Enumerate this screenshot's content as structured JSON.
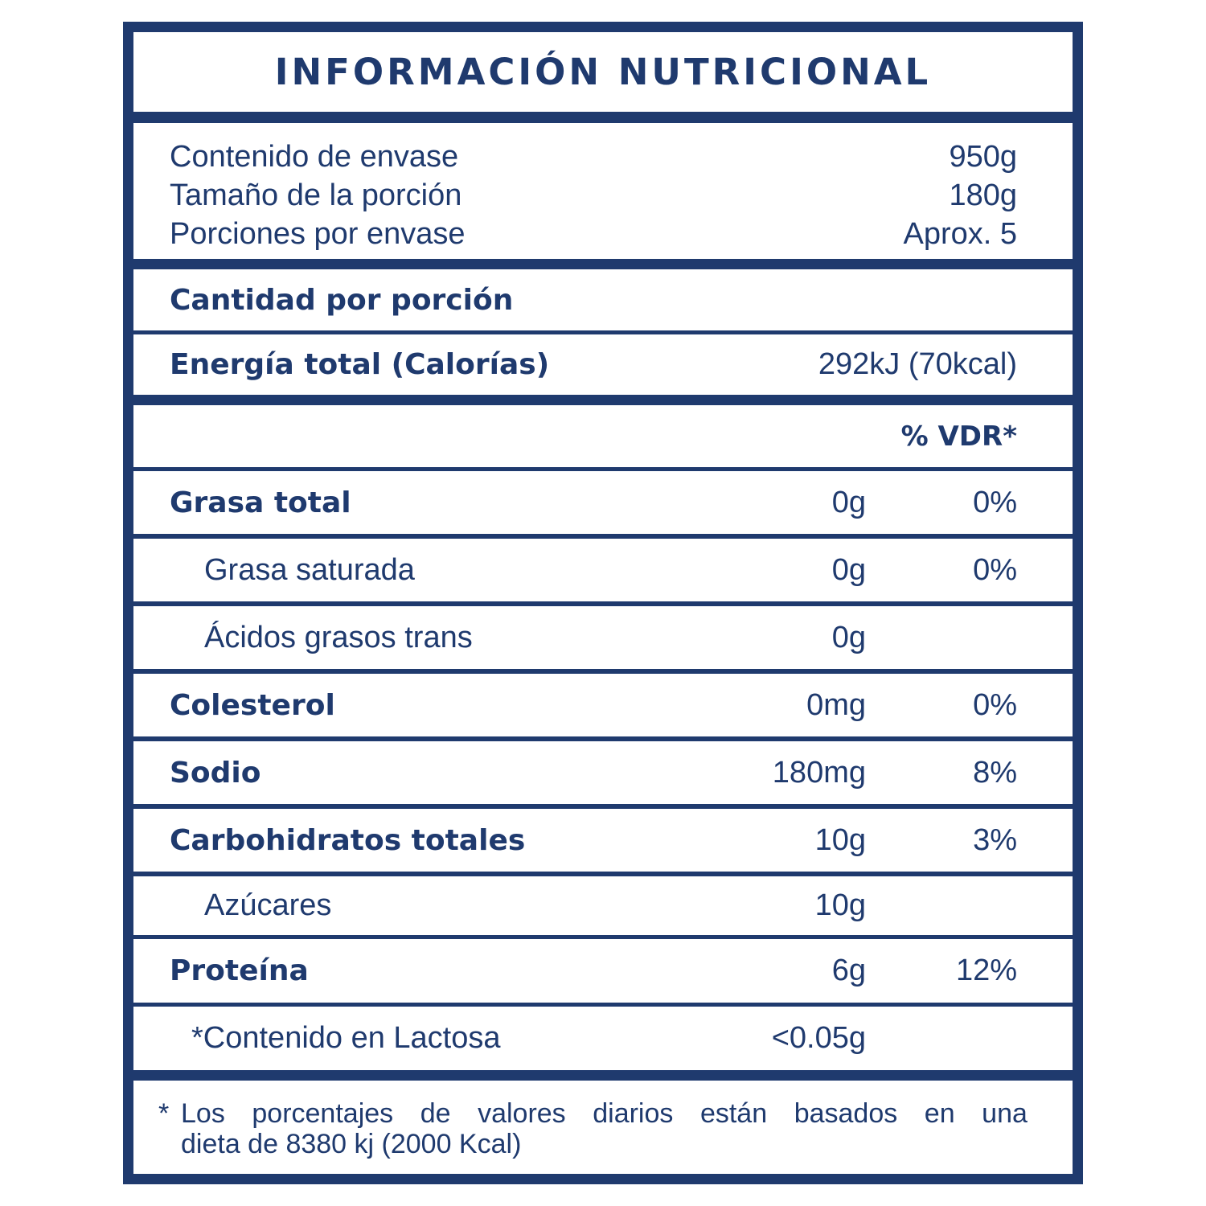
{
  "title": "INFORMACIÓN NUTRICIONAL",
  "header_info": [
    {
      "label": "Contenido de envase",
      "value": "950g"
    },
    {
      "label": "Tamaño de la porción",
      "value": "180g"
    },
    {
      "label": "Porciones por envase",
      "value": "Aprox. 5"
    }
  ],
  "amount_per_serving": "Cantidad por porción",
  "energy": {
    "label": "Energía total (Calorías)",
    "value": "292kJ (70kcal)"
  },
  "vdr_header": "% VDR*",
  "nutrients": [
    {
      "label": "Grasa total",
      "amount": "0g",
      "vdr": "0%"
    },
    {
      "label": "Grasa saturada",
      "amount": "0g",
      "vdr": "0%"
    },
    {
      "label": "Ácidos grasos trans",
      "amount": "0g",
      "vdr": ""
    },
    {
      "label": "Colesterol",
      "amount": "0mg",
      "vdr": "0%"
    },
    {
      "label": "Sodio",
      "amount": "180mg",
      "vdr": "8%"
    },
    {
      "label": "Carbohidratos totales",
      "amount": "10g",
      "vdr": "3%"
    },
    {
      "label": "Azúcares",
      "amount": "10g",
      "vdr": ""
    },
    {
      "label": "Proteína",
      "amount": "6g",
      "vdr": "12%"
    },
    {
      "label": "*Contenido en Lactosa",
      "amount": "<0.05g",
      "vdr": ""
    }
  ],
  "footnote": {
    "star": "*",
    "line1_words": [
      "Los",
      "porcentajes",
      "de",
      "valores",
      "diarios",
      "están",
      "basados",
      "en",
      "una"
    ],
    "line2": "dieta de 8380 kj (2000 Kcal)"
  },
  "colors": {
    "navy": "#1f3a6e",
    "background": "#ffffff"
  }
}
